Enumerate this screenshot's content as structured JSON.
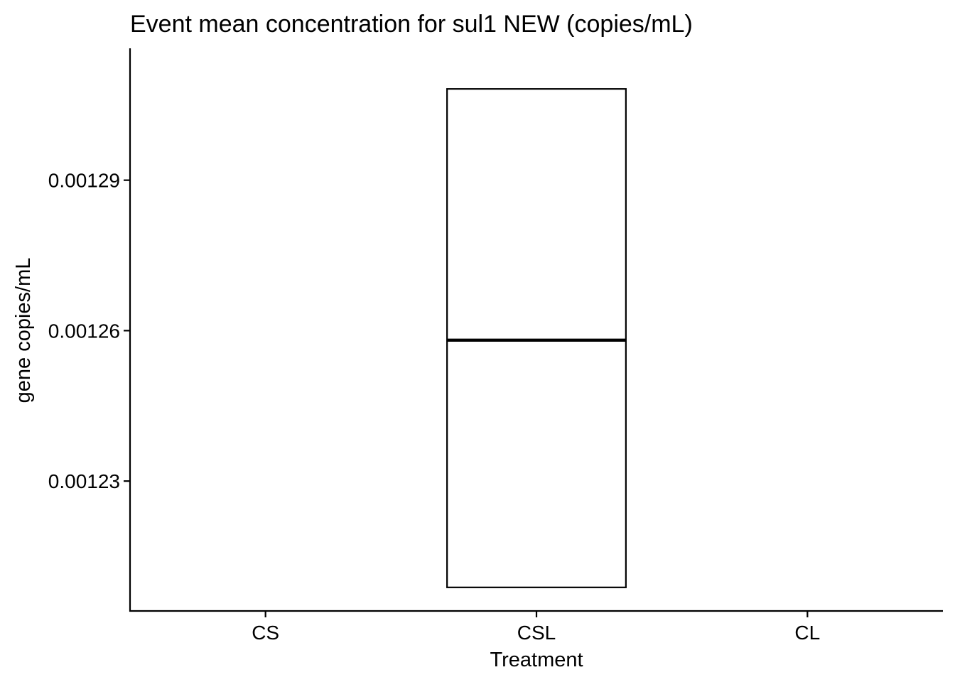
{
  "chart_data": {
    "type": "boxplot",
    "title": "Event mean concentration for sul1 NEW (copies/mL)",
    "xlabel": "Treatment",
    "ylabel": "gene copies/mL",
    "categories": [
      "CS",
      "CSL",
      "CL"
    ],
    "yticks": [
      {
        "value": 0.00123,
        "label": "0.00123"
      },
      {
        "value": 0.00126,
        "label": "0.00126"
      },
      {
        "value": 0.00129,
        "label": "0.00129"
      }
    ],
    "ylim": [
      0.0012041,
      0.0013163
    ],
    "boxes": [
      {
        "category": "CSL",
        "q1": 0.0012088,
        "median": 0.0012581,
        "q3": 0.0013082
      }
    ],
    "grid": false,
    "legend": "none",
    "colors": {
      "box_stroke": "#000000",
      "box_fill": "#ffffff",
      "axis": "#000000"
    }
  }
}
